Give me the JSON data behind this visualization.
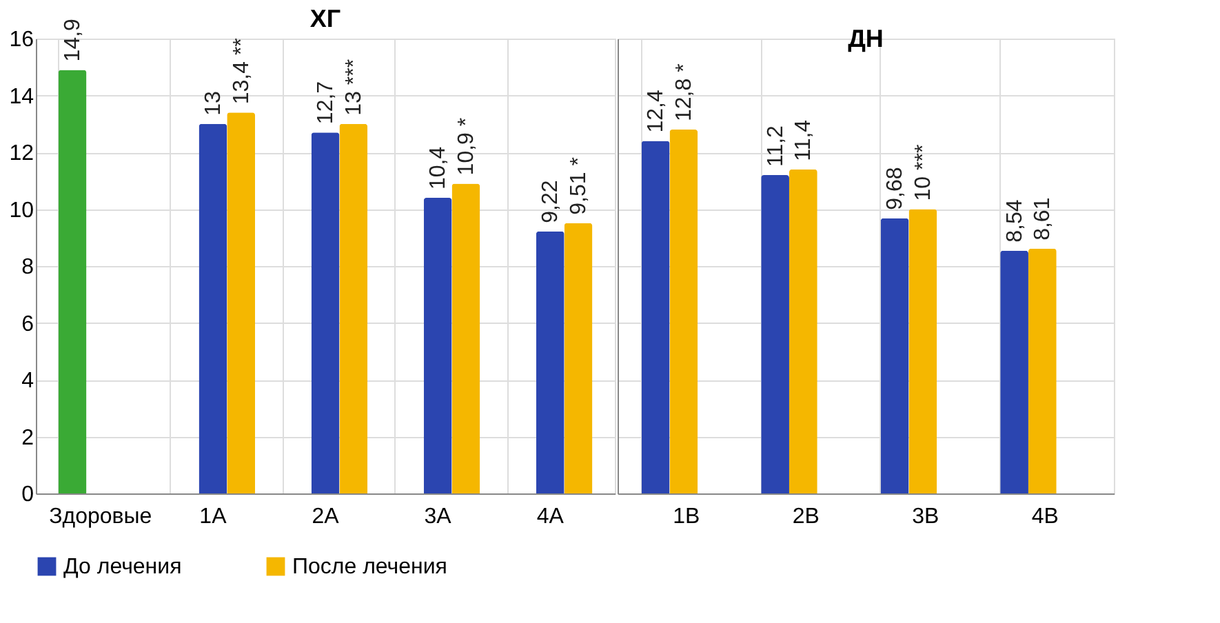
{
  "chart_data": [
    {
      "type": "bar",
      "title": "ХГ",
      "categories": [
        "Здоровые",
        "1А",
        "2А",
        "3А",
        "4А"
      ],
      "series": [
        {
          "color": "#3aaa35",
          "values": [
            14.9,
            null,
            null,
            null,
            null
          ],
          "value_labels": [
            "14,9",
            null,
            null,
            null,
            null
          ]
        },
        {
          "name": "До лечения",
          "color": "#2b45b0",
          "values": [
            null,
            13,
            12.7,
            10.4,
            9.22
          ],
          "value_labels": [
            null,
            "13",
            "12,7",
            "10,4",
            "9,22"
          ]
        },
        {
          "name": "После лечения",
          "color": "#f5b700",
          "values": [
            null,
            13.4,
            13,
            10.9,
            9.51
          ],
          "value_labels": [
            null,
            "13,4 **",
            "13 ***",
            "10,9 *",
            "9,51 *"
          ]
        }
      ],
      "ylim": [
        0,
        16
      ],
      "yticks": [
        0,
        2,
        4,
        6,
        8,
        10,
        12,
        14,
        16
      ],
      "grid": true,
      "legend": "bottom"
    },
    {
      "type": "bar",
      "title": "ДН",
      "categories": [
        "1В",
        "2В",
        "3В",
        "4В"
      ],
      "series": [
        {
          "name": "До лечения",
          "color": "#2b45b0",
          "values": [
            12.4,
            11.2,
            9.68,
            8.54
          ],
          "value_labels": [
            "12,4",
            "11,2",
            "9,68",
            "8,54"
          ]
        },
        {
          "name": "После лечения",
          "color": "#f5b700",
          "values": [
            12.8,
            11.4,
            10,
            8.61
          ],
          "value_labels": [
            "12,8 *",
            "11,4",
            "10 ***",
            "8,61"
          ]
        }
      ],
      "ylim": [
        0,
        16
      ],
      "yticks": [
        0,
        2,
        4,
        6,
        8,
        10,
        12,
        14,
        16
      ],
      "grid": true,
      "tick_labels": "x"
    }
  ]
}
